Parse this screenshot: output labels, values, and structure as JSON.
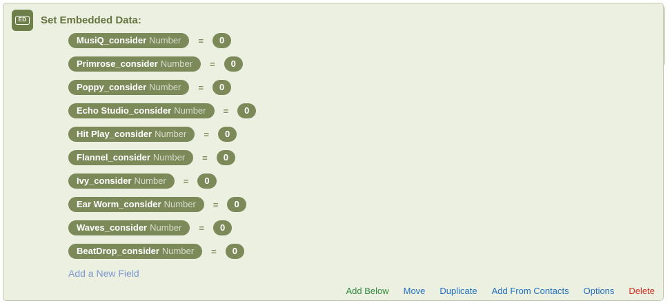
{
  "panel": {
    "icon_label": "ED",
    "title": "Set Embedded Data:",
    "equals_sign": "=",
    "fields": [
      {
        "name": "MusiQ_consider",
        "type": "Number",
        "value": "0"
      },
      {
        "name": "Primrose_consider",
        "type": "Number",
        "value": "0"
      },
      {
        "name": "Poppy_consider",
        "type": "Number",
        "value": "0"
      },
      {
        "name": "Echo Studio_consider",
        "type": "Number",
        "value": "0"
      },
      {
        "name": "Hit Play_consider",
        "type": "Number",
        "value": "0"
      },
      {
        "name": "Flannel_consider",
        "type": "Number",
        "value": "0"
      },
      {
        "name": "Ivy_consider",
        "type": "Number",
        "value": "0"
      },
      {
        "name": "Ear Worm_consider",
        "type": "Number",
        "value": "0"
      },
      {
        "name": "Waves_consider",
        "type": "Number",
        "value": "0"
      },
      {
        "name": "BeatDrop_consider",
        "type": "Number",
        "value": "0"
      }
    ],
    "add_field_label": "Add a New Field"
  },
  "footer": {
    "actions": [
      {
        "label": "Add Below",
        "color": "#2f8a3c"
      },
      {
        "label": "Move",
        "color": "#1f6fc0"
      },
      {
        "label": "Duplicate",
        "color": "#1f6fc0"
      },
      {
        "label": "Add From Contacts",
        "color": "#1f6fc0"
      },
      {
        "label": "Options",
        "color": "#1f6fc0"
      },
      {
        "label": "Delete",
        "color": "#d32f20"
      }
    ]
  },
  "colors": {
    "panel_bg": "#ecf0e1",
    "panel_border": "#c2c8ae",
    "pill_green": "#7c8a5a",
    "icon_green": "#6f7f4a",
    "title_green": "#647540",
    "type_text": "#d8dbcc",
    "add_field_link": "#7e99cf",
    "action_green": "#2f8a3c",
    "action_blue": "#1f6fc0",
    "action_red": "#d32f20"
  }
}
